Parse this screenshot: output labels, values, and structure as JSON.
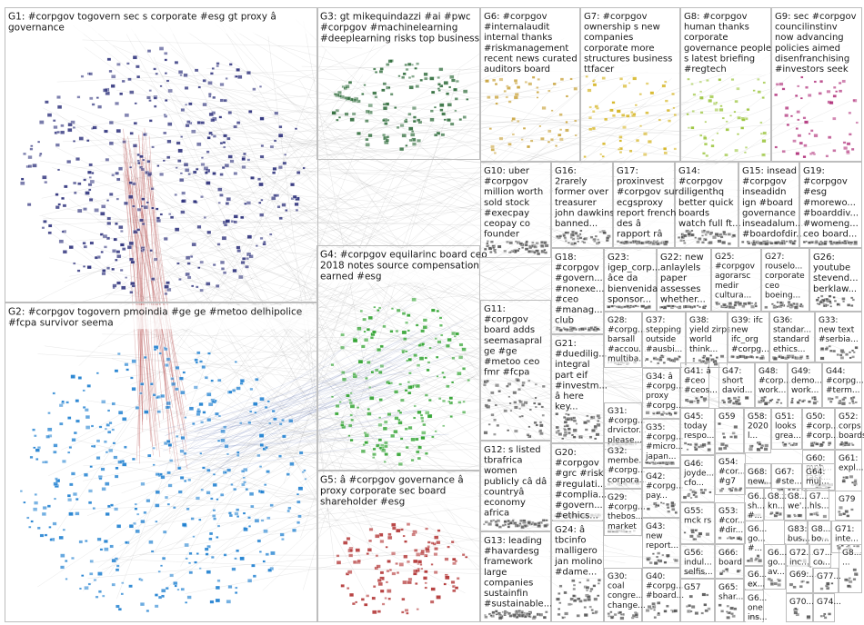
{
  "graph": {
    "groups": [
      {
        "id": "G1",
        "lines": [
          "G1: #corpgov togovern sec s corporate #esg gt proxy â",
          "governance"
        ],
        "color": "#2b2f7a"
      },
      {
        "id": "G2",
        "lines": [
          "G2: #corpgov togovern pmoindia #ge ge #metoo delhipolice",
          "#fcpa survivor seema"
        ],
        "color": "#1e7fd0"
      },
      {
        "id": "G3",
        "lines": [
          "G3: gt mikequindazzi #ai #pwc",
          "#corpgov #machinelearning",
          "#deeplearning risks top business"
        ],
        "color": "#2e6b3a"
      },
      {
        "id": "G4",
        "lines": [
          "G4: #corpgov equilarinc board ceo",
          "2018 notes source compensation",
          "earned #esg"
        ],
        "color": "#2aa02a"
      },
      {
        "id": "G5",
        "lines": [
          "G5: â #corpgov governance â",
          "proxy corporate sec board",
          "shareholder #esg"
        ],
        "color": "#b03030"
      },
      {
        "id": "G6",
        "lines": [
          "G6: #corpgov",
          "#internalaudit",
          "internal thanks",
          "#riskmanagement",
          "recent news curated",
          "auditors board"
        ],
        "color": "#c8a23a"
      },
      {
        "id": "G7",
        "lines": [
          "G7: #corpgov",
          "ownership s new",
          "companies",
          "corporate more",
          "structures business",
          "ttfacer"
        ],
        "color": "#d4b21a"
      },
      {
        "id": "G8",
        "lines": [
          "G8: #corpgov",
          "human thanks",
          "corporate",
          "governance people",
          "s latest briefing",
          "#regtech"
        ],
        "color": "#9ac43a"
      },
      {
        "id": "G9",
        "lines": [
          "G9: sec #corpgov",
          "councilinstinv",
          "now advancing",
          "policies aimed",
          "disenfranchising",
          "#investors seek"
        ],
        "color": "#b0307a"
      },
      {
        "id": "G10",
        "lines": [
          "G10: uber",
          "#corpgov",
          "million worth",
          "sold stock",
          "#execpay",
          "ceopay co",
          "founder"
        ],
        "color": "#555555"
      },
      {
        "id": "G11",
        "lines": [
          "G11:",
          "#corpgov",
          "board adds",
          "seemasapral",
          "ge #ge",
          "#metoo ceo",
          "fmr #fcpa"
        ],
        "color": "#555555"
      },
      {
        "id": "G12",
        "lines": [
          "G12: s listed",
          "tbrafrica",
          "women",
          "publicly câ dâ",
          "countryâ",
          "economy",
          "africa"
        ],
        "color": "#555555"
      },
      {
        "id": "G13",
        "lines": [
          "G13: leading",
          "#havardesg",
          "framework",
          "large",
          "companies",
          "sustainfin",
          "#sustainable..."
        ],
        "color": "#555555"
      },
      {
        "id": "G14",
        "lines": [
          "G14:",
          "#corpgov",
          "diligenthq",
          "better quick",
          "boards",
          "watch full ft..."
        ],
        "color": "#555555"
      },
      {
        "id": "G15",
        "lines": [
          "G15: insead",
          "#corpgov",
          "inseadidn",
          "ign #board",
          "governance",
          "inseadalum...",
          "#boardofdir..."
        ],
        "color": "#555555"
      },
      {
        "id": "G16",
        "lines": [
          "G16:",
          "2rarely",
          "former over",
          "treasurer",
          "john dawkins",
          "banned..."
        ],
        "color": "#555555"
      },
      {
        "id": "G17",
        "lines": [
          "G17:",
          "proxinvest",
          "#corpgov sur",
          "ecgsproxy",
          "report french",
          "des â",
          "rapport râ"
        ],
        "color": "#555555"
      },
      {
        "id": "G18",
        "lines": [
          "G18:",
          "#corpgov",
          "#govern...",
          "#nonexe...",
          "#ceo",
          "#manag...",
          "club"
        ],
        "color": "#555555"
      },
      {
        "id": "G19",
        "lines": [
          "G19:",
          "#corpgov",
          "#esg",
          "#morewo...",
          "#boarddiv...",
          "#womeng...",
          "ceo board..."
        ],
        "color": "#555555"
      },
      {
        "id": "G20",
        "lines": [
          "G20:",
          "#corpgov",
          "#grc #risk",
          "#regulati...",
          "#complia...",
          "#govern...",
          "#ethics..."
        ],
        "color": "#555555"
      },
      {
        "id": "G21",
        "lines": [
          "G21:",
          "#duedilig...",
          "integral",
          "part eif",
          "#investm...",
          "â here",
          "key..."
        ],
        "color": "#555555"
      },
      {
        "id": "G22",
        "lines": [
          "G22: new",
          "anlaylels",
          "paper",
          "assesses",
          "whether..."
        ],
        "color": "#555555"
      },
      {
        "id": "G23",
        "lines": [
          "G23:",
          "igep_corp...",
          "âce da",
          "bienvenida",
          "sponsor..."
        ],
        "color": "#555555"
      },
      {
        "id": "G24",
        "lines": [
          "G24: â",
          "tbcinfo",
          "malligero",
          "jan molino",
          "#dame..."
        ],
        "color": "#555555"
      },
      {
        "id": "G25",
        "lines": [
          "G25:",
          "#corpgov",
          "agorarsc",
          "medir",
          "cultura..."
        ],
        "color": "#555555"
      },
      {
        "id": "G26",
        "lines": [
          "G26:",
          "youtube",
          "stevend...",
          "berklaw..."
        ],
        "color": "#555555"
      },
      {
        "id": "G27",
        "lines": [
          "G27:",
          "rouselo...",
          "corporate",
          "ceo",
          "boeing..."
        ],
        "color": "#555555"
      },
      {
        "id": "G28",
        "lines": [
          "G28:",
          "#corpg...",
          "barsall",
          "#accou...",
          "multiba..."
        ],
        "color": "#555555"
      },
      {
        "id": "G29",
        "lines": [
          "G29:",
          "#corpg...",
          "thebos...",
          "market"
        ],
        "color": "#555555"
      },
      {
        "id": "G30",
        "lines": [
          "G30:",
          "coal",
          "congre...",
          "change..."
        ],
        "color": "#555555"
      },
      {
        "id": "G31",
        "lines": [
          "G31:",
          "#corpg...",
          "drvictor...",
          "please..."
        ],
        "color": "#555555"
      },
      {
        "id": "G32",
        "lines": [
          "G32:",
          "membe...",
          "#corpg...",
          "corpora..."
        ],
        "color": "#555555"
      },
      {
        "id": "G33",
        "lines": [
          "G33:",
          "new text",
          "#serbia..."
        ],
        "color": "#555555"
      },
      {
        "id": "G34",
        "lines": [
          "G34: â",
          "#corpg...",
          "proxy",
          "#corpg..."
        ],
        "color": "#555555"
      },
      {
        "id": "G35",
        "lines": [
          "G35:",
          "#corpg...",
          "#micro...",
          "japan..."
        ],
        "color": "#555555"
      },
      {
        "id": "G36",
        "lines": [
          "G36:",
          "standar...",
          "standard",
          "ethics..."
        ],
        "color": "#555555"
      },
      {
        "id": "G37",
        "lines": [
          "G37:",
          "stepping",
          "outside",
          "#ausbi..."
        ],
        "color": "#555555"
      },
      {
        "id": "G38",
        "lines": [
          "G38:",
          "yield zirps",
          "world",
          "think..."
        ],
        "color": "#555555"
      },
      {
        "id": "G39",
        "lines": [
          "G39: ifc",
          "new",
          "ifc_org",
          "#corpg..."
        ],
        "color": "#555555"
      },
      {
        "id": "G40",
        "lines": [
          "G40:",
          "#corpg...",
          "#board..."
        ],
        "color": "#555555"
      },
      {
        "id": "G41",
        "lines": [
          "G41: â",
          "#ceo",
          "#ceos..."
        ],
        "color": "#555555"
      },
      {
        "id": "G42",
        "lines": [
          "G42:",
          "#corpg...",
          "pay..."
        ],
        "color": "#555555"
      },
      {
        "id": "G43",
        "lines": [
          "G43:",
          "new",
          "report..."
        ],
        "color": "#555555"
      },
      {
        "id": "G44",
        "lines": [
          "G44:",
          "#corpg...",
          "#term..."
        ],
        "color": "#555555"
      },
      {
        "id": "G45",
        "lines": [
          "G45:",
          "today",
          "respo..."
        ],
        "color": "#555555"
      },
      {
        "id": "G46",
        "lines": [
          "G46:",
          "joyde...",
          "cfo..."
        ],
        "color": "#555555"
      },
      {
        "id": "G47",
        "lines": [
          "G47:",
          "short",
          "david..."
        ],
        "color": "#555555"
      },
      {
        "id": "G48",
        "lines": [
          "G48:",
          "#corp...",
          "work..."
        ],
        "color": "#555555"
      },
      {
        "id": "G49",
        "lines": [
          "G49:",
          "demo...",
          "work..."
        ],
        "color": "#555555"
      },
      {
        "id": "G50",
        "lines": [
          "G50:",
          "#corp...",
          "#corp..."
        ],
        "color": "#555555"
      },
      {
        "id": "G51",
        "lines": [
          "G51:",
          "looks",
          "grea..."
        ],
        "color": "#555555"
      },
      {
        "id": "G52",
        "lines": [
          "G52:",
          "corps",
          "boards"
        ],
        "color": "#555555"
      },
      {
        "id": "G53",
        "lines": [
          "G53:",
          "#cor...",
          "#dir..."
        ],
        "color": "#555555"
      },
      {
        "id": "G54",
        "lines": [
          "G54:",
          "#cor...",
          "#g7"
        ],
        "color": "#555555"
      },
      {
        "id": "G55",
        "lines": [
          "G55:",
          "mck rs"
        ],
        "color": "#555555"
      },
      {
        "id": "G56",
        "lines": [
          "G56:",
          "indul...",
          "selfis..."
        ],
        "color": "#555555"
      },
      {
        "id": "G57",
        "lines": [
          "G57"
        ],
        "color": "#555555"
      },
      {
        "id": "G58",
        "lines": [
          "G58:",
          "2020",
          "l..."
        ],
        "color": "#555555"
      },
      {
        "id": "G59",
        "lines": [
          "G59"
        ],
        "color": "#555555"
      },
      {
        "id": "G60",
        "lines": [
          "G60:",
          "mpb...",
          "task..."
        ],
        "color": "#555555"
      },
      {
        "id": "G61",
        "lines": [
          "G61:",
          "expl..."
        ],
        "color": "#555555"
      },
      {
        "id": "G62",
        "lines": [
          "G6...",
          "sh...",
          "#..."
        ],
        "color": "#555555"
      },
      {
        "id": "G63",
        "lines": [
          "G6...",
          "go...",
          "#..."
        ],
        "color": "#555555"
      },
      {
        "id": "G64",
        "lines": [
          "G64:",
          "muj..."
        ],
        "color": "#555555"
      },
      {
        "id": "G65",
        "lines": [
          "G65:",
          "shar..."
        ],
        "color": "#555555"
      },
      {
        "id": "G66",
        "lines": [
          "G66:",
          "board"
        ],
        "color": "#555555"
      },
      {
        "id": "G67",
        "lines": [
          "G67:",
          "#ste..."
        ],
        "color": "#555555"
      },
      {
        "id": "G68",
        "lines": [
          "G68:",
          "new..."
        ],
        "color": "#555555"
      },
      {
        "id": "G69",
        "lines": [
          "G69:..."
        ],
        "color": "#555555"
      },
      {
        "id": "G70",
        "lines": [
          "G70..."
        ],
        "color": "#555555"
      },
      {
        "id": "G71",
        "lines": [
          "G71:",
          "inte..."
        ],
        "color": "#555555"
      },
      {
        "id": "G72",
        "lines": [
          "G72...",
          "inc..."
        ],
        "color": "#555555"
      },
      {
        "id": "G73",
        "lines": [
          "G7...",
          "co..."
        ],
        "color": "#555555"
      },
      {
        "id": "G74",
        "lines": [
          "G74..."
        ],
        "color": "#555555"
      },
      {
        "id": "G75",
        "lines": [
          "G7...",
          "hls..."
        ],
        "color": "#555555"
      },
      {
        "id": "G76",
        "lines": [
          "G6...",
          "ex..."
        ],
        "color": "#555555"
      },
      {
        "id": "G77",
        "lines": [
          "G77..."
        ],
        "color": "#555555"
      },
      {
        "id": "G78",
        "lines": [
          "G6...",
          "one",
          "ins..."
        ],
        "color": "#555555"
      },
      {
        "id": "G79",
        "lines": [
          "G79"
        ],
        "color": "#555555"
      },
      {
        "id": "G80",
        "lines": [
          "G8...",
          "kn..."
        ],
        "color": "#555555"
      },
      {
        "id": "G81",
        "lines": [
          "G8...",
          "we'..."
        ],
        "color": "#555555"
      },
      {
        "id": "G82",
        "lines": [
          "G6...",
          "go...",
          "av..."
        ],
        "color": "#555555"
      },
      {
        "id": "G83",
        "lines": [
          "G83:",
          "bus..."
        ],
        "color": "#555555"
      },
      {
        "id": "G84",
        "lines": [
          "G8...",
          "bo..."
        ],
        "color": "#555555"
      },
      {
        "id": "G85",
        "lines": [
          "G8...",
          "..."
        ],
        "color": "#555555"
      }
    ]
  }
}
